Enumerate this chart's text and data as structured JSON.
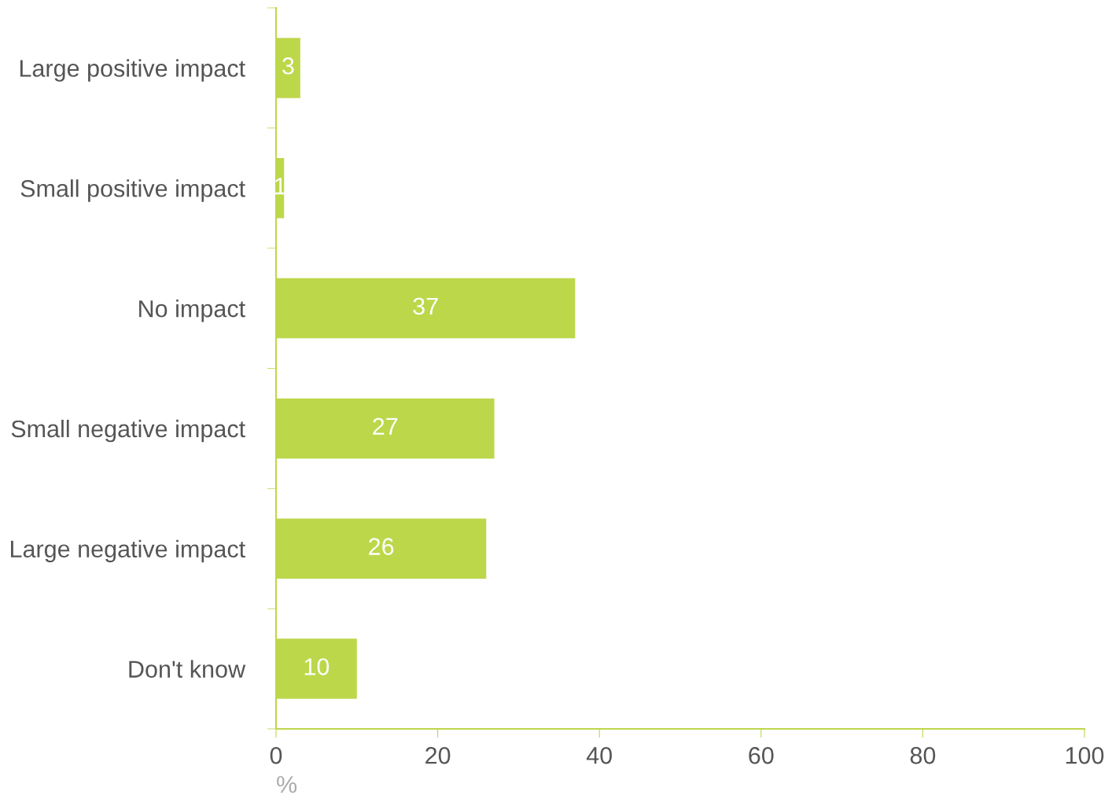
{
  "chart_data": {
    "type": "bar",
    "orientation": "horizontal",
    "xlabel": "%",
    "categories": [
      "Large positive impact",
      "Small positive impact",
      "No impact",
      "Small negative impact",
      "Large negative impact",
      "Don't know"
    ],
    "values": [
      3,
      1,
      37,
      27,
      26,
      10
    ],
    "color": "#bdd74b",
    "xlim": [
      0,
      100
    ],
    "xticks": [
      0,
      20,
      40,
      60,
      80,
      100
    ],
    "grid": false,
    "data_labels": true
  }
}
